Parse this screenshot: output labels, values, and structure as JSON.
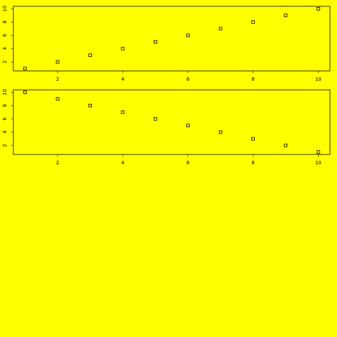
{
  "colors": {
    "background": "#ffff00",
    "foreground": "#000000"
  },
  "chart_data": [
    {
      "type": "scatter",
      "title": "",
      "xlabel": "",
      "ylabel": "",
      "marker": "open-square",
      "x": [
        1,
        2,
        3,
        4,
        5,
        6,
        7,
        8,
        9,
        10
      ],
      "y": [
        1,
        2,
        3,
        4,
        5,
        6,
        7,
        8,
        9,
        10
      ],
      "xlim": [
        0.64,
        10.36
      ],
      "ylim": [
        0.64,
        10.36
      ],
      "xticks": [
        "2",
        "4",
        "6",
        "8",
        "10"
      ],
      "yticks": [
        "2",
        "4",
        "6",
        "8",
        "10"
      ],
      "grid": false,
      "legend": "none"
    },
    {
      "type": "scatter",
      "title": "",
      "xlabel": "",
      "ylabel": "",
      "marker": "open-square",
      "x": [
        1,
        2,
        3,
        4,
        5,
        6,
        7,
        8,
        9,
        10
      ],
      "y": [
        10,
        9,
        8,
        7,
        6,
        5,
        4,
        3,
        2,
        1
      ],
      "xlim": [
        0.64,
        10.36
      ],
      "ylim": [
        0.64,
        10.36
      ],
      "xticks": [
        "2",
        "4",
        "6",
        "8",
        "10"
      ],
      "yticks": [
        "2",
        "4",
        "6",
        "8",
        "10"
      ],
      "grid": false,
      "legend": "none"
    }
  ]
}
